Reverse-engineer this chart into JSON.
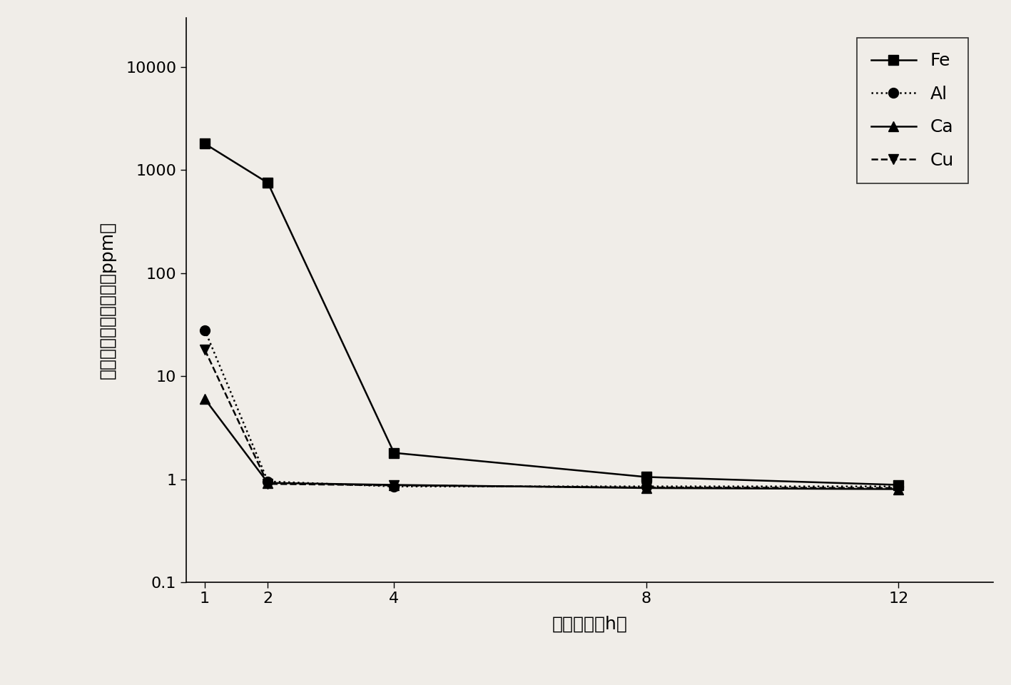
{
  "x": [
    1,
    2,
    4,
    8,
    12
  ],
  "Fe": [
    1800,
    750,
    1.8,
    1.05,
    0.88
  ],
  "Al": [
    28,
    0.95,
    0.85,
    0.85,
    0.85
  ],
  "Ca": [
    6,
    0.92,
    0.88,
    0.82,
    0.8
  ],
  "Cu": [
    18,
    0.9,
    0.87,
    0.83,
    0.82
  ],
  "xlabel": "反应时间（h）",
  "ylabel": "砥中杂质元素的含量（ppm）",
  "ylim_min": 0.1,
  "ylim_max": 30000,
  "xlim_min": 0.7,
  "xlim_max": 13.5,
  "xticks": [
    1,
    2,
    4,
    8,
    12
  ],
  "yticks": [
    0.1,
    1,
    10,
    100,
    1000,
    10000
  ],
  "ytick_labels": [
    "0.1",
    "1",
    "10",
    "100",
    "1000",
    "10000"
  ],
  "legend_labels": [
    "Fe",
    "Al",
    "Ca",
    "Cu"
  ],
  "background_color": "#f0ede8",
  "line_color": "#000000",
  "label_fontsize": 18,
  "tick_fontsize": 16,
  "legend_fontsize": 18
}
